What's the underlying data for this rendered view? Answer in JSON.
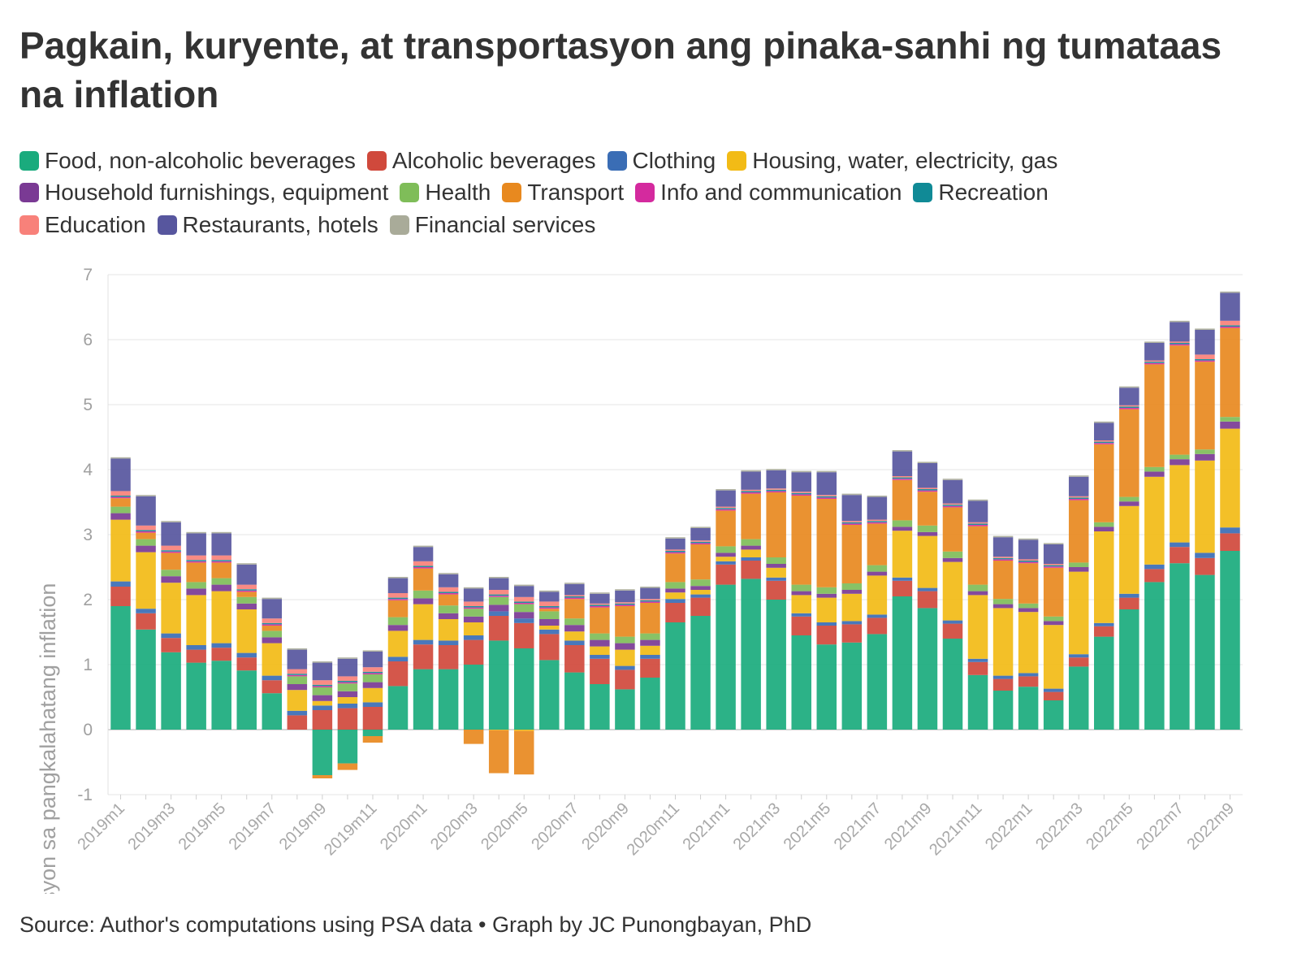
{
  "title": "Pagkain, kuryente, at transportasyon ang pinaka-sanhi ng tumataas na inflation",
  "source": "Source: Author's computations using PSA data • Graph by JC Punongbayan, PhD",
  "chart_data": {
    "type": "bar",
    "stacked": true,
    "title": "Pagkain, kuryente, at transportasyon ang pinaka-sanhi ng tumataas na inflation",
    "xlabel": "",
    "ylabel": "% kontribusyon sa pangkalahatang inflation",
    "ylim": [
      -1,
      7
    ],
    "yticks": [
      -1,
      0,
      1,
      2,
      3,
      4,
      5,
      6,
      7
    ],
    "grid": true,
    "legend_position": "top",
    "categories": [
      "2019m1",
      "2019m2",
      "2019m3",
      "2019m4",
      "2019m5",
      "2019m6",
      "2019m7",
      "2019m8",
      "2019m9",
      "2019m10",
      "2019m11",
      "2019m12",
      "2020m1",
      "2020m2",
      "2020m3",
      "2020m4",
      "2020m5",
      "2020m6",
      "2020m7",
      "2020m8",
      "2020m9",
      "2020m10",
      "2020m11",
      "2020m12",
      "2021m1",
      "2021m2",
      "2021m3",
      "2021m4",
      "2021m5",
      "2021m6",
      "2021m7",
      "2021m8",
      "2021m9",
      "2021m10",
      "2021m11",
      "2021m12",
      "2022m1",
      "2022m2",
      "2022m3",
      "2022m4",
      "2022m5",
      "2022m6",
      "2022m7",
      "2022m8",
      "2022m9"
    ],
    "x_tick_labels": [
      "2019m1",
      "2019m3",
      "2019m5",
      "2019m7",
      "2019m9",
      "2019m11",
      "2020m1",
      "2020m3",
      "2020m5",
      "2020m7",
      "2020m9",
      "2020m11",
      "2021m1",
      "2021m3",
      "2021m5",
      "2021m7",
      "2021m9",
      "2021m11",
      "2022m1",
      "2022m3",
      "2022m5",
      "2022m7",
      "2022m9"
    ],
    "series": [
      {
        "name": "Food, non-alcoholic beverages",
        "color": "#1aab7d",
        "values": [
          1.9,
          1.54,
          1.19,
          1.03,
          1.06,
          0.91,
          0.56,
          0,
          -0.7,
          -0.52,
          -0.1,
          0.67,
          0.93,
          0.93,
          1.0,
          1.37,
          1.25,
          1.07,
          0.88,
          0.7,
          0.62,
          0.8,
          1.65,
          1.75,
          2.23,
          2.32,
          2.0,
          1.45,
          1.31,
          1.34,
          1.47,
          2.05,
          1.87,
          1.4,
          0.84,
          0.6,
          0.66,
          0.45,
          0.97,
          1.43,
          1.85,
          2.27,
          2.56,
          2.38,
          2.75
        ]
      },
      {
        "name": "Alcoholic beverages",
        "color": "#d0493c",
        "values": [
          0.3,
          0.25,
          0.22,
          0.2,
          0.2,
          0.2,
          0.2,
          0.22,
          0.3,
          0.33,
          0.35,
          0.38,
          0.38,
          0.37,
          0.38,
          0.38,
          0.39,
          0.4,
          0.42,
          0.39,
          0.3,
          0.29,
          0.3,
          0.28,
          0.31,
          0.28,
          0.29,
          0.29,
          0.29,
          0.28,
          0.25,
          0.24,
          0.26,
          0.23,
          0.2,
          0.18,
          0.16,
          0.13,
          0.14,
          0.16,
          0.18,
          0.2,
          0.25,
          0.26,
          0.27
        ]
      },
      {
        "name": "Clothing",
        "color": "#3a6db5",
        "values": [
          0.08,
          0.07,
          0.07,
          0.07,
          0.07,
          0.07,
          0.07,
          0.07,
          0.07,
          0.07,
          0.07,
          0.07,
          0.07,
          0.07,
          0.07,
          0.07,
          0.07,
          0.07,
          0.07,
          0.06,
          0.06,
          0.06,
          0.06,
          0.05,
          0.05,
          0.05,
          0.05,
          0.05,
          0.05,
          0.05,
          0.05,
          0.05,
          0.05,
          0.05,
          0.05,
          0.05,
          0.05,
          0.05,
          0.05,
          0.05,
          0.06,
          0.07,
          0.07,
          0.08,
          0.09
        ]
      },
      {
        "name": "Housing, water, electricity, gas",
        "color": "#f2bb16",
        "values": [
          0.95,
          0.87,
          0.78,
          0.77,
          0.8,
          0.67,
          0.5,
          0.32,
          0.07,
          0.1,
          0.22,
          0.4,
          0.55,
          0.33,
          0.2,
          -0.01,
          -0.02,
          0.06,
          0.14,
          0.13,
          0.25,
          0.14,
          0.1,
          0.07,
          0.07,
          0.12,
          0.15,
          0.28,
          0.38,
          0.42,
          0.6,
          0.72,
          0.8,
          0.9,
          0.98,
          1.04,
          0.94,
          0.98,
          1.27,
          1.41,
          1.35,
          1.35,
          1.19,
          1.42,
          1.52
        ]
      },
      {
        "name": "Household furnishings, equipment",
        "color": "#7a3a94",
        "values": [
          0.1,
          0.1,
          0.1,
          0.1,
          0.1,
          0.09,
          0.09,
          0.09,
          0.09,
          0.09,
          0.09,
          0.09,
          0.09,
          0.09,
          0.09,
          0.1,
          0.1,
          0.1,
          0.1,
          0.1,
          0.1,
          0.09,
          0.06,
          0.06,
          0.06,
          0.06,
          0.06,
          0.06,
          0.06,
          0.06,
          0.06,
          0.06,
          0.06,
          0.06,
          0.06,
          0.06,
          0.06,
          0.06,
          0.07,
          0.07,
          0.07,
          0.08,
          0.09,
          0.1,
          0.11
        ]
      },
      {
        "name": "Health",
        "color": "#7fbd59",
        "values": [
          0.1,
          0.1,
          0.1,
          0.1,
          0.1,
          0.1,
          0.1,
          0.12,
          0.12,
          0.12,
          0.12,
          0.12,
          0.12,
          0.12,
          0.12,
          0.12,
          0.12,
          0.12,
          0.1,
          0.1,
          0.1,
          0.1,
          0.1,
          0.1,
          0.1,
          0.1,
          0.1,
          0.1,
          0.1,
          0.1,
          0.1,
          0.1,
          0.1,
          0.1,
          0.1,
          0.08,
          0.07,
          0.07,
          0.07,
          0.07,
          0.07,
          0.07,
          0.07,
          0.07,
          0.07
        ]
      },
      {
        "name": "Transport",
        "color": "#e8891f",
        "values": [
          0.13,
          0.1,
          0.26,
          0.3,
          0.24,
          0.08,
          0.08,
          0,
          -0.05,
          -0.1,
          -0.1,
          0.26,
          0.34,
          0.17,
          -0.22,
          -0.66,
          -0.67,
          0.04,
          0.3,
          0.4,
          0.47,
          0.47,
          0.44,
          0.54,
          0.55,
          0.7,
          1.0,
          1.37,
          1.36,
          0.9,
          0.64,
          0.62,
          0.52,
          0.68,
          0.9,
          0.59,
          0.62,
          0.75,
          0.96,
          1.2,
          1.35,
          1.58,
          1.68,
          1.35,
          1.37
        ]
      },
      {
        "name": "Info and communication",
        "color": "#d42a9e",
        "values": [
          0.02,
          0.02,
          0.02,
          0.02,
          0.02,
          0.02,
          0.02,
          0.02,
          0.02,
          0.02,
          0.02,
          0.02,
          0.02,
          0.02,
          0.02,
          0.02,
          0.02,
          0.02,
          0.02,
          0.02,
          0.02,
          0.02,
          0.02,
          0.02,
          0.02,
          0.02,
          0.02,
          0.02,
          0.02,
          0.02,
          0.02,
          0.02,
          0.02,
          0.02,
          0.02,
          0.02,
          0.02,
          0.02,
          0.02,
          0.02,
          0.02,
          0.02,
          0.02,
          0.02,
          0.02
        ]
      },
      {
        "name": "Recreation",
        "color": "#108a96",
        "values": [
          0.02,
          0.02,
          0.02,
          0.02,
          0.02,
          0.02,
          0.02,
          0.02,
          0.02,
          0.02,
          0.02,
          0.02,
          0.02,
          0.02,
          0.02,
          0.02,
          0.02,
          0.02,
          0.02,
          0.02,
          0.02,
          0.02,
          0.02,
          0.02,
          0.02,
          0.02,
          0.02,
          0.02,
          0.02,
          0.02,
          0.02,
          0.02,
          0.02,
          0.02,
          0.02,
          0.02,
          0.02,
          0.02,
          0.02,
          0.02,
          0.02,
          0.02,
          0.02,
          0.02,
          0.02
        ]
      },
      {
        "name": "Education",
        "color": "#f8817a",
        "values": [
          0.07,
          0.07,
          0.07,
          0.07,
          0.07,
          0.07,
          0.07,
          0.07,
          0.07,
          0.07,
          0.07,
          0.07,
          0.07,
          0.07,
          0.07,
          0.07,
          0.07,
          0.07,
          0.02,
          0.02,
          0.02,
          0.02,
          0.02,
          0.02,
          0.02,
          0.02,
          0.02,
          0.02,
          0.02,
          0.02,
          0.02,
          0.02,
          0.02,
          0.02,
          0.02,
          0.02,
          0.02,
          0.02,
          0.02,
          0.02,
          0.02,
          0.02,
          0.02,
          0.07,
          0.07
        ]
      },
      {
        "name": "Restaurants, hotels",
        "color": "#57569e",
        "values": [
          0.5,
          0.45,
          0.36,
          0.34,
          0.34,
          0.31,
          0.3,
          0.3,
          0.27,
          0.27,
          0.24,
          0.23,
          0.22,
          0.2,
          0.2,
          0.18,
          0.17,
          0.15,
          0.17,
          0.15,
          0.18,
          0.17,
          0.17,
          0.19,
          0.25,
          0.28,
          0.28,
          0.3,
          0.35,
          0.4,
          0.35,
          0.38,
          0.38,
          0.36,
          0.33,
          0.3,
          0.3,
          0.3,
          0.3,
          0.27,
          0.27,
          0.27,
          0.3,
          0.38,
          0.43
        ]
      },
      {
        "name": "Financial services",
        "color": "#a9ab99",
        "values": [
          0.02,
          0.02,
          0.02,
          0.02,
          0.02,
          0.02,
          0.02,
          0.02,
          0.02,
          0.02,
          0.02,
          0.02,
          0.02,
          0.02,
          0.02,
          0.02,
          0.02,
          0.02,
          0.02,
          0.02,
          0.02,
          0.02,
          0.02,
          0.02,
          0.02,
          0.02,
          0.02,
          0.02,
          0.02,
          0.02,
          0.02,
          0.02,
          0.02,
          0.02,
          0.02,
          0.02,
          0.02,
          0.02,
          0.02,
          0.02,
          0.02,
          0.02,
          0.02,
          0.02,
          0.02
        ]
      }
    ]
  }
}
